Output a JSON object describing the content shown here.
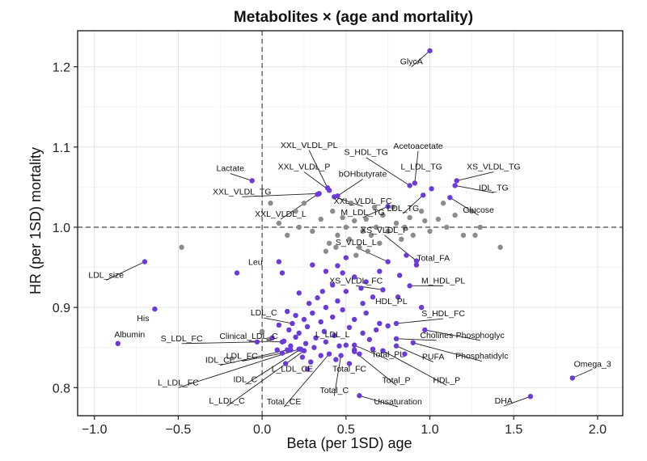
{
  "chart_data": {
    "type": "scatter",
    "title": "Metabolites × (age and mortality)",
    "xlabel": "Beta (per 1SD) age",
    "ylabel": "HR (per 1SD) mortality",
    "xlim": [
      -1.1,
      2.15
    ],
    "ylim": [
      0.765,
      1.245
    ],
    "xticks": [
      -1.0,
      -0.5,
      0.0,
      0.5,
      1.0,
      1.5,
      2.0
    ],
    "xtick_labels": [
      "−1.0",
      "−0.5",
      "0.0",
      "0.5",
      "1.0",
      "1.5",
      "2.0"
    ],
    "yticks": [
      0.8,
      0.9,
      1.0,
      1.1,
      1.2
    ],
    "ytick_labels": [
      "0.8",
      "0.9",
      "1.0",
      "1.1",
      "1.2"
    ],
    "reference_lines": {
      "x": 0.0,
      "y": 1.0
    },
    "grid": true,
    "colors": {
      "significant": "#6a3bd8",
      "nonsignificant": "#8c8c8c",
      "refline": "#555555"
    },
    "labeled_points": [
      {
        "name": "GlycA",
        "x": 1.0,
        "y": 1.22,
        "lx": 0.89,
        "ly": 1.203,
        "anchor": "middle"
      },
      {
        "name": "Acetoacetate",
        "x": 0.91,
        "y": 1.055,
        "lx": 0.93,
        "ly": 1.098,
        "anchor": "middle"
      },
      {
        "name": "S_HDL_TG",
        "x": 0.88,
        "y": 1.052,
        "lx": 0.62,
        "ly": 1.09,
        "anchor": "middle"
      },
      {
        "name": "L_LDL_TG",
        "x": 1.01,
        "y": 1.048,
        "lx": 0.95,
        "ly": 1.072,
        "anchor": "middle"
      },
      {
        "name": "XS_VLDL_TG",
        "x": 1.16,
        "y": 1.058,
        "lx": 1.38,
        "ly": 1.072,
        "anchor": "middle"
      },
      {
        "name": "IDL_TG",
        "x": 1.15,
        "y": 1.052,
        "lx": 1.38,
        "ly": 1.046,
        "anchor": "middle"
      },
      {
        "name": "Glucose",
        "x": 1.12,
        "y": 1.037,
        "lx": 1.29,
        "ly": 1.018,
        "anchor": "middle"
      },
      {
        "name": "LDL_TG",
        "x": 0.96,
        "y": 1.04,
        "lx": 0.84,
        "ly": 1.02,
        "anchor": "middle"
      },
      {
        "name": "M_LDL_TG",
        "x": 0.75,
        "y": 1.026,
        "lx": 0.6,
        "ly": 1.015,
        "anchor": "middle"
      },
      {
        "name": "XXL_VLDL_PL",
        "x": 0.39,
        "y": 1.049,
        "lx": 0.28,
        "ly": 1.099,
        "anchor": "middle"
      },
      {
        "name": "XXL_VLDL_P",
        "x": 0.4,
        "y": 1.046,
        "lx": 0.25,
        "ly": 1.072,
        "anchor": "middle"
      },
      {
        "name": "bOHbutyrate",
        "x": 0.45,
        "y": 1.039,
        "lx": 0.6,
        "ly": 1.063,
        "anchor": "middle"
      },
      {
        "name": "Lactate",
        "x": -0.06,
        "y": 1.058,
        "lx": -0.19,
        "ly": 1.07,
        "anchor": "middle"
      },
      {
        "name": "XXL_VLDL_TG",
        "x": 0.34,
        "y": 1.042,
        "lx": -0.12,
        "ly": 1.041,
        "anchor": "middle"
      },
      {
        "name": "XXL_VLDL_FC",
        "x": 0.43,
        "y": 1.038,
        "lx": 0.6,
        "ly": 1.029,
        "anchor": "middle"
      },
      {
        "name": "XXL_VLDL_L",
        "x": 0.33,
        "y": 1.041,
        "lx": 0.11,
        "ly": 1.013,
        "anchor": "middle"
      },
      {
        "name": "XS_VLDL_P",
        "x": 0.92,
        "y": 0.958,
        "lx": 0.73,
        "ly": 0.993,
        "anchor": "middle"
      },
      {
        "name": "S_VLDL_L",
        "x": 0.75,
        "y": 0.957,
        "lx": 0.56,
        "ly": 0.978,
        "anchor": "middle"
      },
      {
        "name": "Total_FA",
        "x": 0.92,
        "y": 0.953,
        "lx": 1.02,
        "ly": 0.958,
        "anchor": "middle"
      },
      {
        "name": "LDL_size",
        "x": -0.7,
        "y": 0.957,
        "lx": -0.93,
        "ly": 0.937,
        "anchor": "middle"
      },
      {
        "name": "Leu",
        "x": -0.15,
        "y": 0.943,
        "lx": -0.04,
        "ly": 0.953,
        "anchor": "middle"
      },
      {
        "name": "XS_VLDL_FC",
        "x": 0.72,
        "y": 0.922,
        "lx": 0.56,
        "ly": 0.93,
        "anchor": "middle"
      },
      {
        "name": "M_HDL_PL",
        "x": 0.88,
        "y": 0.927,
        "lx": 1.08,
        "ly": 0.93,
        "anchor": "middle"
      },
      {
        "name": "HDL_PL",
        "x": 0.81,
        "y": 0.913,
        "lx": 0.77,
        "ly": 0.904,
        "anchor": "middle"
      },
      {
        "name": "His",
        "x": -0.64,
        "y": 0.898,
        "lx": -0.71,
        "ly": 0.883,
        "anchor": "middle"
      },
      {
        "name": "S_HDL_FC",
        "x": 0.8,
        "y": 0.88,
        "lx": 1.08,
        "ly": 0.889,
        "anchor": "middle"
      },
      {
        "name": "LDL_C",
        "x": 0.18,
        "y": 0.88,
        "lx": 0.01,
        "ly": 0.89,
        "anchor": "middle"
      },
      {
        "name": "Cholines",
        "x": 0.8,
        "y": 0.861,
        "lx": 1.04,
        "ly": 0.862,
        "anchor": "middle"
      },
      {
        "name": "Phosphoglyc",
        "x": 0.97,
        "y": 0.872,
        "lx": 1.3,
        "ly": 0.862,
        "anchor": "middle"
      },
      {
        "name": "Albumin",
        "x": -0.86,
        "y": 0.855,
        "lx": -0.79,
        "ly": 0.863,
        "anchor": "middle"
      },
      {
        "name": "S_LDL_FC",
        "x": -0.03,
        "y": 0.857,
        "lx": -0.48,
        "ly": 0.858,
        "anchor": "middle"
      },
      {
        "name": "Clinical_LDL_C",
        "x": 0.12,
        "y": 0.857,
        "lx": -0.08,
        "ly": 0.861,
        "anchor": "middle"
      },
      {
        "name": "L_LDL_L",
        "x": 0.5,
        "y": 0.853,
        "lx": 0.42,
        "ly": 0.863,
        "anchor": "middle"
      },
      {
        "name": "Total_PL",
        "x": 0.55,
        "y": 0.853,
        "lx": 0.75,
        "ly": 0.838,
        "anchor": "middle"
      },
      {
        "name": "PUFA",
        "x": 0.8,
        "y": 0.852,
        "lx": 1.02,
        "ly": 0.835,
        "anchor": "middle"
      },
      {
        "name": "Phosphatidylc",
        "x": 0.9,
        "y": 0.856,
        "lx": 1.31,
        "ly": 0.836,
        "anchor": "middle"
      },
      {
        "name": "IDL_CE",
        "x": 0.15,
        "y": 0.847,
        "lx": -0.25,
        "ly": 0.831,
        "anchor": "middle"
      },
      {
        "name": "LDL_FC",
        "x": 0.12,
        "y": 0.843,
        "lx": -0.12,
        "ly": 0.836,
        "anchor": "middle"
      },
      {
        "name": "L_LDL_CE",
        "x": 0.17,
        "y": 0.847,
        "lx": 0.18,
        "ly": 0.82,
        "anchor": "middle"
      },
      {
        "name": "Total_FC",
        "x": 0.55,
        "y": 0.847,
        "lx": 0.52,
        "ly": 0.82,
        "anchor": "middle"
      },
      {
        "name": "Total_P",
        "x": 0.55,
        "y": 0.845,
        "lx": 0.8,
        "ly": 0.806,
        "anchor": "middle"
      },
      {
        "name": "HDL_P",
        "x": 0.72,
        "y": 0.846,
        "lx": 1.1,
        "ly": 0.806,
        "anchor": "middle"
      },
      {
        "name": "Omega_3",
        "x": 1.85,
        "y": 0.812,
        "lx": 1.97,
        "ly": 0.826,
        "anchor": "middle"
      },
      {
        "name": "L_LDL_FC",
        "x": 0.22,
        "y": 0.848,
        "lx": -0.5,
        "ly": 0.803,
        "anchor": "middle"
      },
      {
        "name": "IDL_C",
        "x": 0.23,
        "y": 0.848,
        "lx": -0.1,
        "ly": 0.807,
        "anchor": "middle"
      },
      {
        "name": "Total_C",
        "x": 0.47,
        "y": 0.84,
        "lx": 0.43,
        "ly": 0.793,
        "anchor": "middle"
      },
      {
        "name": "L_LDL_C",
        "x": 0.25,
        "y": 0.846,
        "lx": -0.21,
        "ly": 0.78,
        "anchor": "middle"
      },
      {
        "name": "Total_CE",
        "x": 0.4,
        "y": 0.842,
        "lx": 0.13,
        "ly": 0.779,
        "anchor": "middle"
      },
      {
        "name": "Unsaturation",
        "x": 0.58,
        "y": 0.79,
        "lx": 0.81,
        "ly": 0.779,
        "anchor": "middle"
      },
      {
        "name": "DHA",
        "x": 1.6,
        "y": 0.789,
        "lx": 1.44,
        "ly": 0.78,
        "anchor": "middle"
      }
    ],
    "unlabeled_significant_points": [
      [
        0.1,
        0.957
      ],
      [
        0.12,
        0.943
      ],
      [
        0.3,
        0.953
      ],
      [
        0.38,
        0.945
      ],
      [
        0.45,
        0.952
      ],
      [
        0.48,
        0.943
      ],
      [
        0.55,
        0.938
      ],
      [
        0.62,
        0.932
      ],
      [
        0.7,
        0.945
      ],
      [
        0.36,
        0.92
      ],
      [
        0.42,
        0.928
      ],
      [
        0.5,
        0.92
      ],
      [
        0.59,
        0.924
      ],
      [
        0.66,
        0.913
      ],
      [
        0.22,
        0.918
      ],
      [
        0.28,
        0.905
      ],
      [
        0.33,
        0.912
      ],
      [
        0.38,
        0.9
      ],
      [
        0.45,
        0.908
      ],
      [
        0.6,
        0.905
      ],
      [
        0.15,
        0.895
      ],
      [
        0.2,
        0.89
      ],
      [
        0.25,
        0.885
      ],
      [
        0.3,
        0.893
      ],
      [
        0.35,
        0.882
      ],
      [
        0.42,
        0.888
      ],
      [
        0.48,
        0.897
      ],
      [
        0.55,
        0.885
      ],
      [
        0.62,
        0.893
      ],
      [
        0.7,
        0.88
      ],
      [
        0.1,
        0.878
      ],
      [
        0.16,
        0.872
      ],
      [
        0.22,
        0.868
      ],
      [
        0.27,
        0.876
      ],
      [
        0.32,
        0.862
      ],
      [
        0.37,
        0.87
      ],
      [
        0.43,
        0.865
      ],
      [
        0.52,
        0.875
      ],
      [
        0.6,
        0.868
      ],
      [
        0.68,
        0.872
      ],
      [
        0.75,
        0.877
      ],
      [
        0.06,
        0.862
      ],
      [
        0.13,
        0.858
      ],
      [
        0.2,
        0.863
      ],
      [
        0.26,
        0.855
      ],
      [
        0.31,
        0.85
      ],
      [
        0.38,
        0.857
      ],
      [
        0.46,
        0.852
      ],
      [
        0.64,
        0.86
      ],
      [
        0.09,
        0.847
      ],
      [
        0.17,
        0.852
      ],
      [
        0.24,
        0.838
      ],
      [
        0.35,
        0.84
      ],
      [
        0.44,
        0.835
      ],
      [
        0.58,
        0.842
      ],
      [
        0.66,
        0.848
      ],
      [
        0.14,
        0.83
      ],
      [
        0.29,
        0.832
      ],
      [
        0.52,
        0.83
      ],
      [
        0.85,
        0.842
      ],
      [
        0.95,
        0.9
      ],
      [
        0.82,
        0.94
      ],
      [
        0.27,
        0.823
      ],
      [
        0.5,
        0.962
      ],
      [
        0.86,
        0.965
      ]
    ],
    "nonsignificant_points": [
      [
        -0.48,
        0.975
      ],
      [
        0.05,
        1.03
      ],
      [
        0.1,
        1.005
      ],
      [
        0.15,
        0.99
      ],
      [
        0.2,
        1.02
      ],
      [
        0.25,
        1.03
      ],
      [
        0.3,
        0.995
      ],
      [
        0.35,
        1.01
      ],
      [
        0.4,
        0.98
      ],
      [
        0.42,
        1.02
      ],
      [
        0.45,
        0.99
      ],
      [
        0.5,
        1.0
      ],
      [
        0.48,
        1.012
      ],
      [
        0.52,
        0.985
      ],
      [
        0.55,
        1.008
      ],
      [
        0.58,
        0.975
      ],
      [
        0.6,
        0.995
      ],
      [
        0.62,
        1.01
      ],
      [
        0.65,
        0.99
      ],
      [
        0.68,
        1.0
      ],
      [
        0.7,
        0.98
      ],
      [
        0.72,
        1.015
      ],
      [
        0.75,
        0.995
      ],
      [
        0.78,
        1.025
      ],
      [
        0.8,
        1.005
      ],
      [
        0.83,
        0.985
      ],
      [
        0.85,
        1.0
      ],
      [
        0.88,
        1.012
      ],
      [
        0.9,
        0.99
      ],
      [
        0.95,
        1.02
      ],
      [
        1.0,
        0.995
      ],
      [
        1.05,
        1.01
      ],
      [
        1.08,
        1.03
      ],
      [
        1.1,
        1.0
      ],
      [
        1.15,
        1.015
      ],
      [
        1.2,
        0.99
      ],
      [
        1.25,
        1.02
      ],
      [
        1.3,
        1.0
      ],
      [
        1.42,
        0.975
      ],
      [
        1.27,
        0.99
      ],
      [
        0.38,
        0.97
      ],
      [
        0.44,
        0.975
      ],
      [
        0.56,
        0.965
      ],
      [
        0.63,
        0.97
      ],
      [
        0.0,
        0.87
      ],
      [
        0.04,
        0.86
      ],
      [
        0.53,
        1.03
      ],
      [
        0.67,
        1.025
      ],
      [
        0.97,
        1.008
      ],
      [
        0.22,
        1.0
      ]
    ]
  }
}
